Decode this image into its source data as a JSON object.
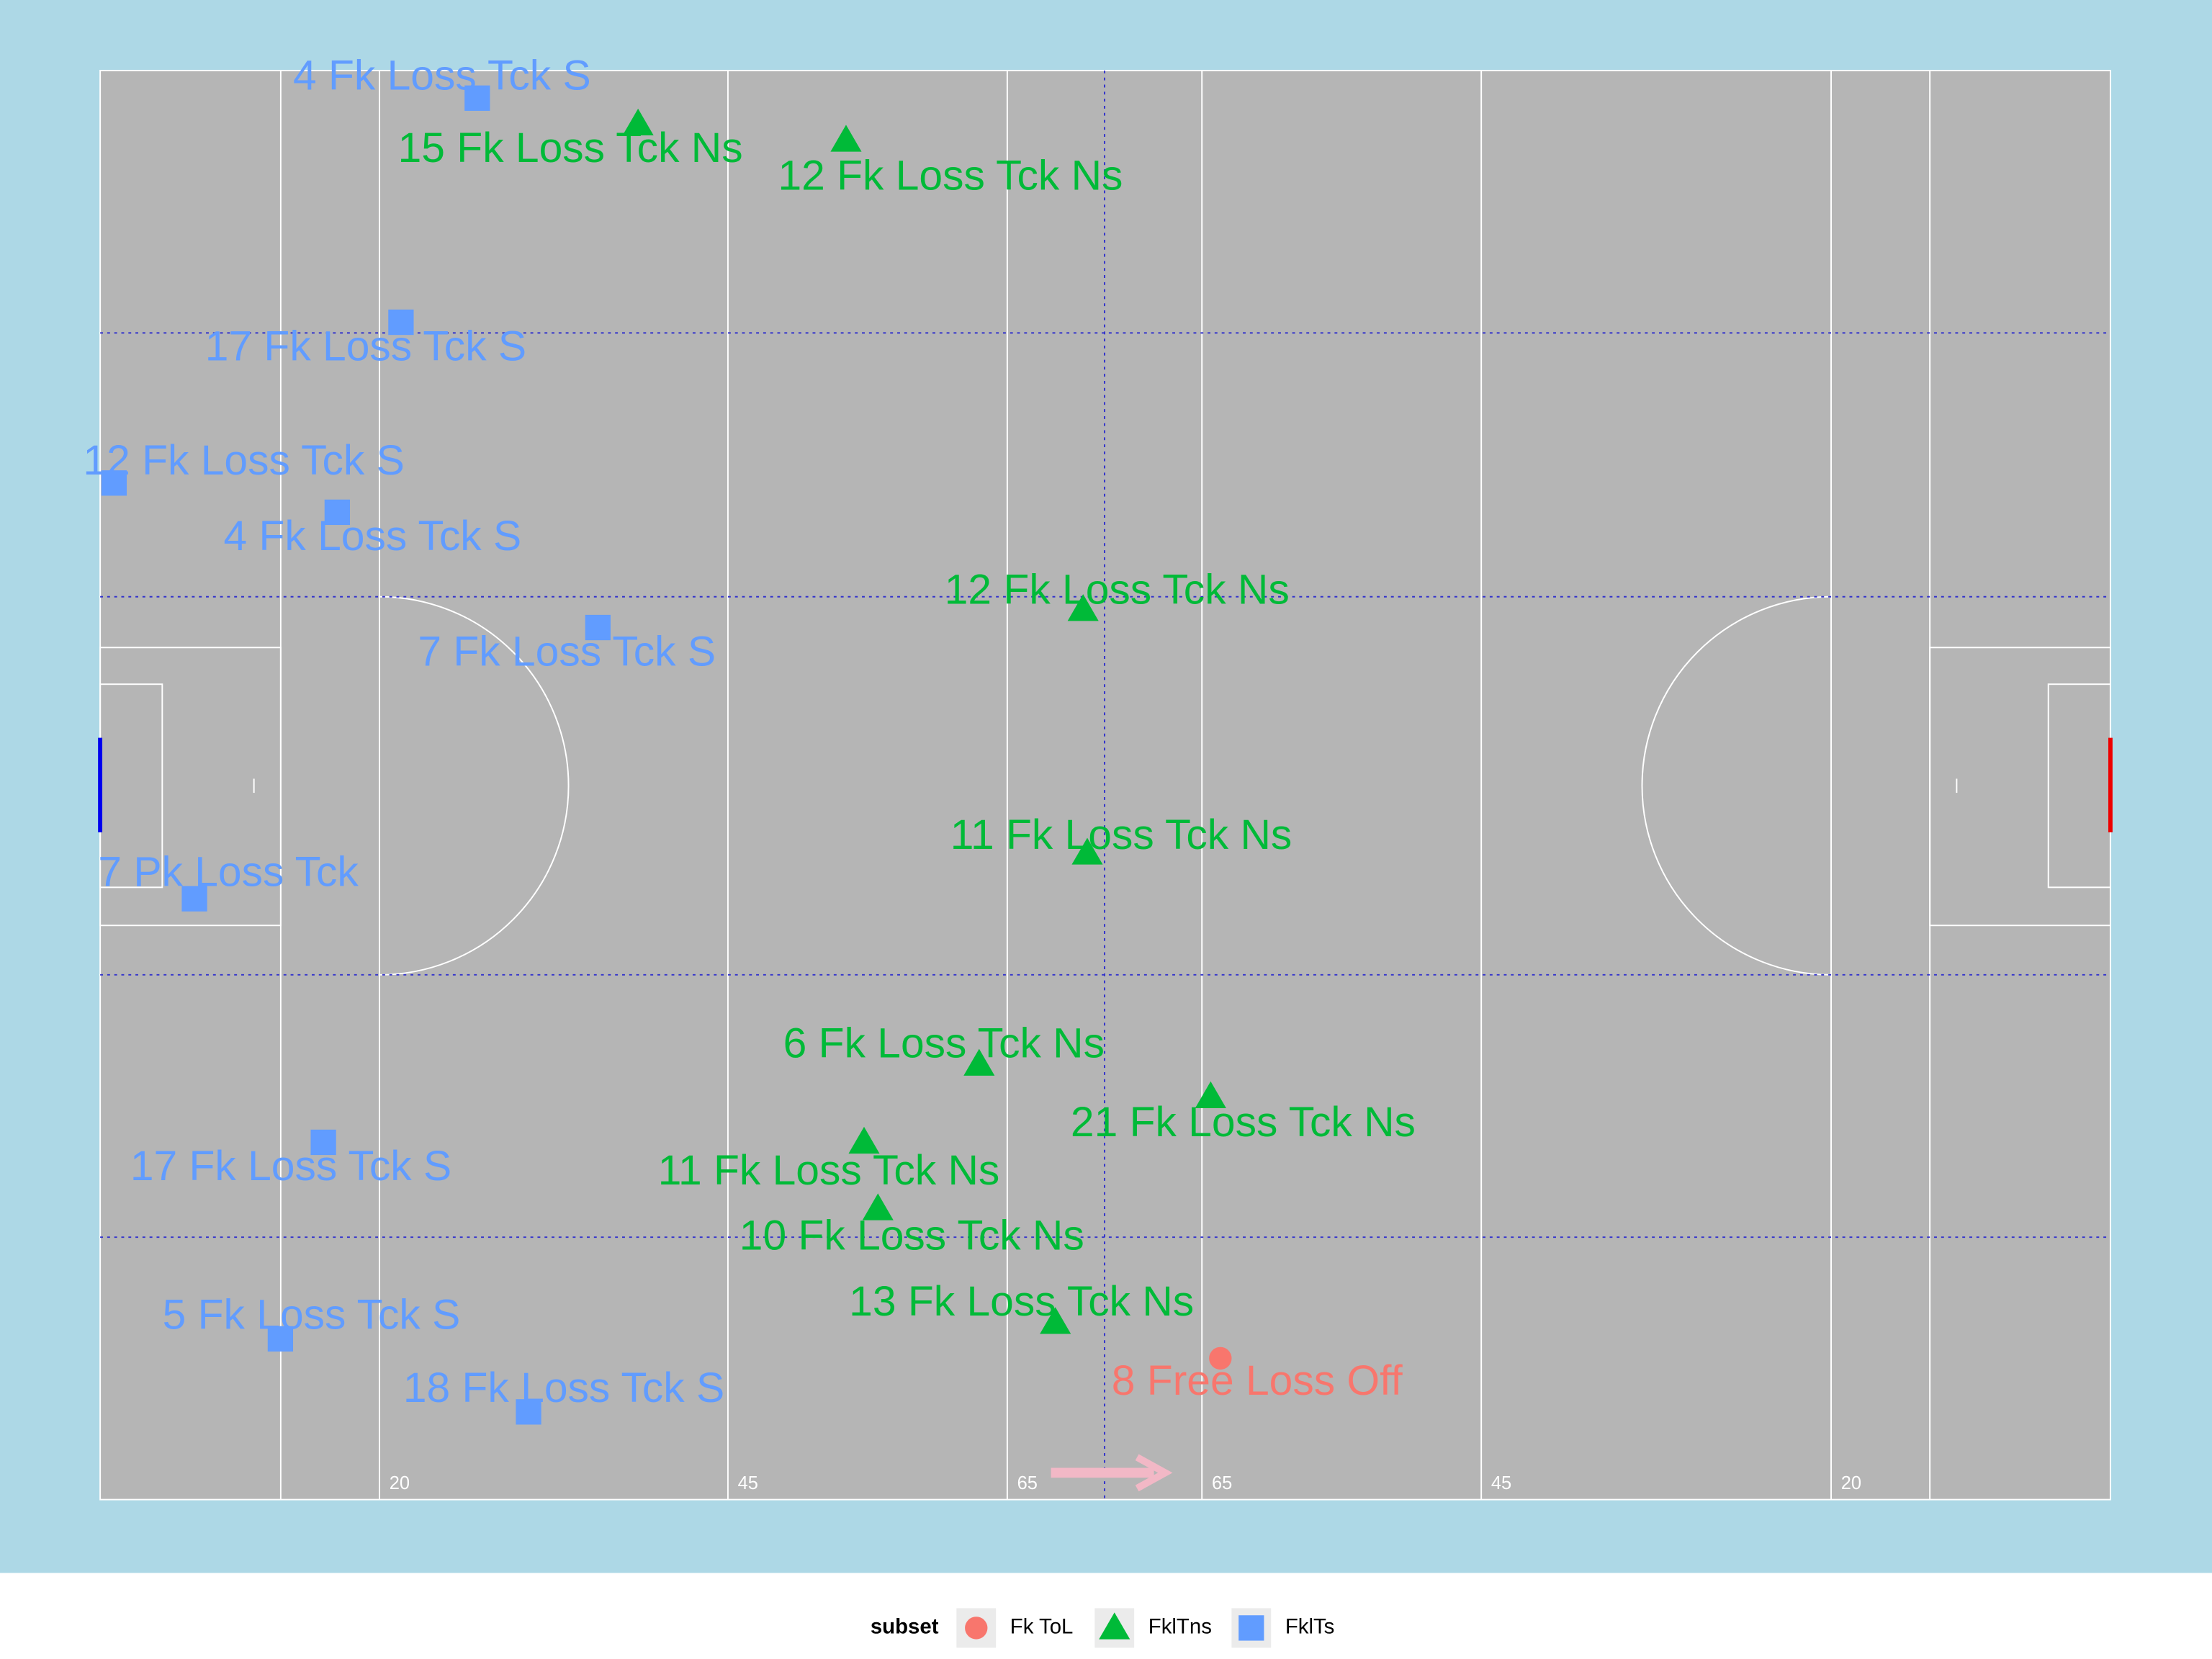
{
  "chart_data": {
    "type": "scatter",
    "xlim": [
      0,
      145
    ],
    "ylim": [
      0,
      88
    ],
    "pitch_labels": [
      "20",
      "45",
      "65",
      "65",
      "45",
      "20"
    ],
    "legend_title": "subset",
    "series": [
      {
        "name": "Fk ToL",
        "color": "#F8766D",
        "shape": "circle",
        "x": [
          80.8
        ],
        "values": [
          8.7
        ],
        "labels": [
          "8 Free Loss Off"
        ]
      },
      {
        "name": "FklTns",
        "color": "#00BA38",
        "shape": "triangle",
        "x": [
          38.8,
          53.8,
          70.9,
          71.2,
          63.4,
          80.1,
          55.1,
          56.1,
          68.9
        ],
        "values": [
          84.7,
          83.7,
          54.8,
          39.8,
          26.8,
          24.8,
          22.0,
          17.9,
          10.9
        ],
        "labels": [
          "15 Fk Loss Tck Ns",
          "12 Fk Loss Tck Ns",
          "12 Fk Loss Tck Ns",
          "11 Fk Loss Tck Ns",
          "6 Fk Loss Tck Ns",
          "21 Fk Loss Tck Ns",
          "11 Fk Loss Tck Ns",
          "10 Fk Loss Tck Ns",
          "13 Fk Loss Tck Ns"
        ]
      },
      {
        "name": "FklTs",
        "color": "#619CFF",
        "shape": "square",
        "x": [
          27.2,
          21.7,
          1.0,
          17.1,
          35.9,
          6.8,
          16.1,
          13.0,
          30.9
        ],
        "values": [
          86.3,
          72.5,
          62.6,
          60.8,
          53.7,
          37.0,
          22.0,
          9.9,
          5.4
        ],
        "labels": [
          "4 Fk Loss Tck S",
          "17 Fk Loss Tck S",
          "12 Fk Loss Tck S",
          "4 Fk Loss Tck S",
          "7 Fk Loss Tck S",
          "7 Pk Loss Tck",
          "17 Fk Loss Tck S",
          "5 Fk Loss Tck S",
          "18 Fk Loss Tck S"
        ]
      }
    ]
  }
}
